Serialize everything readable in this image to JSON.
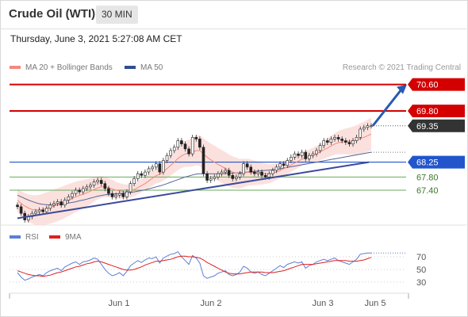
{
  "header": {
    "title": "Crude Oil (WTI)",
    "timeframe": "30 MIN"
  },
  "datetime": "Thursday, June 3, 2021 5:27:08 AM CET",
  "legend": {
    "items": [
      {
        "label": "MA 20 + Bollinger Bands",
        "color": "#f08a80"
      },
      {
        "label": "MA 50",
        "color": "#2f4f8f"
      }
    ],
    "credit": "Research © 2021 Trading Central"
  },
  "rsi_legend": {
    "items": [
      {
        "label": "RSI",
        "color": "#5b7fd6"
      },
      {
        "label": "9MA",
        "color": "#e02020"
      }
    ]
  },
  "colors": {
    "resistance": "#d40000",
    "support": "#2255cc",
    "support_minor": "#6aaa5a",
    "trendline": "#3a4a9a",
    "arrow": "#2a5ab0",
    "band": "#fadad6",
    "ma20": "#f08a80",
    "ma50": "#55669a",
    "candle_up": "#226622",
    "candle_down": "#aa1111",
    "rsi": "#5b7fd6",
    "rsi_ma": "#e02020"
  },
  "chart_data": [
    {
      "type": "candlestick",
      "title": "Crude Oil (WTI)",
      "interval": "30 MIN",
      "ylim": [
        66.2,
        71.0
      ],
      "x_ticks": [
        "Jun 1",
        "Jun 2",
        "Jun 3",
        "Jun 5"
      ],
      "last_price": 69.35,
      "levels": [
        {
          "value": 70.6,
          "label": "70.60",
          "kind": "resistance"
        },
        {
          "value": 69.8,
          "label": "69.80",
          "kind": "resistance"
        },
        {
          "value": 69.35,
          "label": "69.35",
          "kind": "last"
        },
        {
          "value": 68.25,
          "label": "68.25",
          "kind": "support"
        },
        {
          "value": 67.8,
          "label": "67.80",
          "kind": "support_minor"
        },
        {
          "value": 67.4,
          "label": "67.40",
          "kind": "support_minor"
        }
      ],
      "close": [
        66.9,
        66.7,
        66.5,
        66.6,
        66.7,
        66.75,
        66.8,
        66.75,
        66.85,
        66.95,
        67.0,
        67.05,
        66.95,
        67.1,
        67.2,
        67.3,
        67.4,
        67.35,
        67.45,
        67.5,
        67.55,
        67.65,
        67.7,
        67.6,
        67.45,
        67.3,
        67.2,
        67.25,
        67.3,
        67.2,
        67.35,
        67.6,
        67.75,
        67.9,
        67.85,
        67.95,
        68.05,
        68.1,
        68.2,
        67.95,
        68.3,
        68.45,
        68.6,
        68.7,
        68.9,
        68.8,
        68.65,
        68.5,
        69.0,
        68.95,
        68.7,
        67.9,
        67.7,
        67.75,
        67.8,
        67.9,
        67.95,
        68.0,
        67.85,
        67.75,
        67.8,
        67.9,
        68.2,
        68.1,
        67.95,
        67.9,
        67.95,
        67.85,
        67.8,
        67.9,
        68.0,
        68.1,
        68.2,
        68.15,
        68.3,
        68.4,
        68.5,
        68.45,
        68.55,
        68.35,
        68.45,
        68.5,
        68.6,
        68.75,
        68.9,
        68.85,
        68.95,
        69.0,
        68.95,
        68.9,
        68.85,
        68.8,
        68.9,
        69.0,
        69.25,
        69.3,
        69.35,
        69.35
      ],
      "bollinger_ma20": [
        67.1,
        67.0,
        66.92,
        66.86,
        66.82,
        66.8,
        66.8,
        66.82,
        66.85,
        66.88,
        66.92,
        66.96,
        67.0,
        67.05,
        67.1,
        67.15,
        67.2,
        67.24,
        67.28,
        67.32,
        67.37,
        67.42,
        67.47,
        67.5,
        67.5,
        67.48,
        67.44,
        67.4,
        67.38,
        67.36,
        67.36,
        67.38,
        67.42,
        67.48,
        67.54,
        67.6,
        67.68,
        67.76,
        67.84,
        67.88,
        67.96,
        68.05,
        68.15,
        68.25,
        68.36,
        68.44,
        68.5,
        68.52,
        68.55,
        68.6,
        68.6,
        68.5,
        68.4,
        68.32,
        68.25,
        68.18,
        68.12,
        68.06,
        68.0,
        67.95,
        67.92,
        67.9,
        67.92,
        67.94,
        67.94,
        67.92,
        67.92,
        67.9,
        67.9,
        67.9,
        67.92,
        67.95,
        68.0,
        68.05,
        68.1,
        68.16,
        68.22,
        68.28,
        68.34,
        68.38,
        68.42,
        68.46,
        68.5,
        68.56,
        68.62,
        68.68,
        68.74,
        68.8,
        68.84,
        68.86,
        68.88,
        68.88,
        68.9,
        68.92,
        68.96,
        69.0,
        69.05,
        69.1
      ],
      "ma50": [
        67.25,
        67.2,
        67.15,
        67.1,
        67.06,
        67.02,
        66.99,
        66.97,
        66.96,
        66.95,
        66.95,
        66.96,
        66.97,
        66.99,
        67.01,
        67.03,
        67.05,
        67.08,
        67.1,
        67.13,
        67.16,
        67.19,
        67.22,
        67.24,
        67.26,
        67.27,
        67.28,
        67.29,
        67.3,
        67.31,
        67.32,
        67.33,
        67.35,
        67.37,
        67.39,
        67.41,
        67.44,
        67.47,
        67.5,
        67.53,
        67.56,
        67.6,
        67.64,
        67.68,
        67.72,
        67.76,
        67.8,
        67.83,
        67.86,
        67.89,
        67.9,
        67.9,
        67.9,
        67.9,
        67.9,
        67.9,
        67.9,
        67.91,
        67.91,
        67.92,
        67.92,
        67.93,
        67.94,
        67.95,
        67.96,
        67.97,
        67.98,
        67.99,
        68.0,
        68.01,
        68.02,
        68.03,
        68.05,
        68.07,
        68.09,
        68.11,
        68.13,
        68.15,
        68.17,
        68.19,
        68.21,
        68.23,
        68.25,
        68.27,
        68.29,
        68.31,
        68.33,
        68.35,
        68.37,
        68.39,
        68.41,
        68.43,
        68.45,
        68.47,
        68.49,
        68.51,
        68.53,
        68.55
      ],
      "trendline": {
        "from": 66.55,
        "to": 68.25
      },
      "projection": {
        "from": 69.35,
        "to": 70.6
      }
    },
    {
      "type": "line",
      "title": "RSI",
      "ylim": [
        20,
        80
      ],
      "y_ticks": [
        70,
        50,
        30
      ],
      "series": [
        {
          "name": "RSI",
          "values": [
            45,
            38,
            33,
            35,
            38,
            40,
            42,
            40,
            45,
            48,
            50,
            52,
            48,
            54,
            57,
            60,
            62,
            58,
            62,
            63,
            65,
            68,
            66,
            58,
            50,
            44,
            40,
            42,
            45,
            40,
            47,
            56,
            60,
            64,
            61,
            65,
            68,
            67,
            70,
            60,
            68,
            71,
            74,
            75,
            78,
            70,
            64,
            58,
            72,
            68,
            60,
            40,
            36,
            38,
            40,
            44,
            46,
            48,
            42,
            40,
            42,
            46,
            55,
            52,
            46,
            44,
            46,
            42,
            40,
            44,
            48,
            52,
            56,
            53,
            58,
            60,
            62,
            60,
            62,
            52,
            56,
            58,
            62,
            64,
            66,
            64,
            66,
            68,
            64,
            62,
            60,
            58,
            62,
            66,
            74,
            75,
            76,
            76
          ]
        },
        {
          "name": "9MA",
          "values": [
            48,
            46,
            44,
            42,
            41,
            40,
            40,
            39,
            40,
            41,
            43,
            45,
            46,
            48,
            50,
            52,
            54,
            55,
            57,
            59,
            60,
            62,
            63,
            62,
            60,
            58,
            56,
            54,
            52,
            50,
            49,
            49,
            50,
            52,
            54,
            57,
            59,
            61,
            63,
            63,
            64,
            65,
            66,
            68,
            70,
            71,
            71,
            70,
            70,
            69,
            68,
            65,
            61,
            58,
            55,
            52,
            49,
            46,
            44,
            43,
            43,
            43,
            44,
            45,
            46,
            46,
            46,
            46,
            45,
            45,
            45,
            46,
            47,
            48,
            50,
            52,
            54,
            56,
            58,
            58,
            58,
            58,
            59,
            60,
            61,
            62,
            63,
            64,
            64,
            64,
            64,
            63,
            63,
            63,
            64,
            65,
            67,
            69
          ]
        }
      ]
    }
  ]
}
